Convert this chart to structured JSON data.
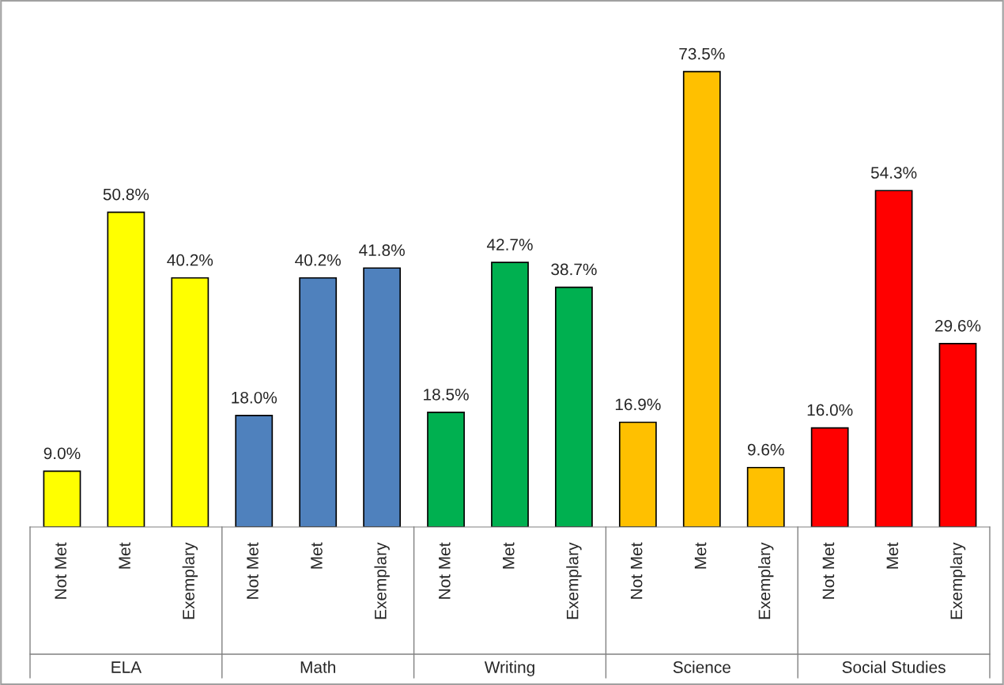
{
  "chart_data": {
    "type": "bar",
    "categories": [
      "Not Met",
      "Met",
      "Exemplary",
      "Not Met",
      "Met",
      "Exemplary",
      "Not Met",
      "Met",
      "Exemplary",
      "Not Met",
      "Met",
      "Exemplary",
      "Not Met",
      "Met",
      "Exemplary"
    ],
    "values": [
      9.0,
      50.8,
      40.2,
      18.0,
      40.2,
      41.8,
      18.5,
      42.7,
      38.7,
      16.9,
      73.5,
      9.6,
      16.0,
      54.3,
      29.6
    ],
    "colors": [
      "#ffff00",
      "#ffff00",
      "#ffff00",
      "#4f81bd",
      "#4f81bd",
      "#4f81bd",
      "#00b050",
      "#00b050",
      "#00b050",
      "#ffc000",
      "#ffc000",
      "#ffc000",
      "#ff0000",
      "#ff0000",
      "#ff0000"
    ],
    "value_labels": [
      "9.0%",
      "50.8%",
      "40.2%",
      "18.0%",
      "40.2%",
      "41.8%",
      "18.5%",
      "42.7%",
      "38.7%",
      "16.9%",
      "73.5%",
      "9.6%",
      "16.0%",
      "54.3%",
      "29.6%"
    ],
    "annotations": [
      "ELA",
      "Math",
      "Writing",
      "Science",
      "Social Studies"
    ],
    "grid": false
  }
}
